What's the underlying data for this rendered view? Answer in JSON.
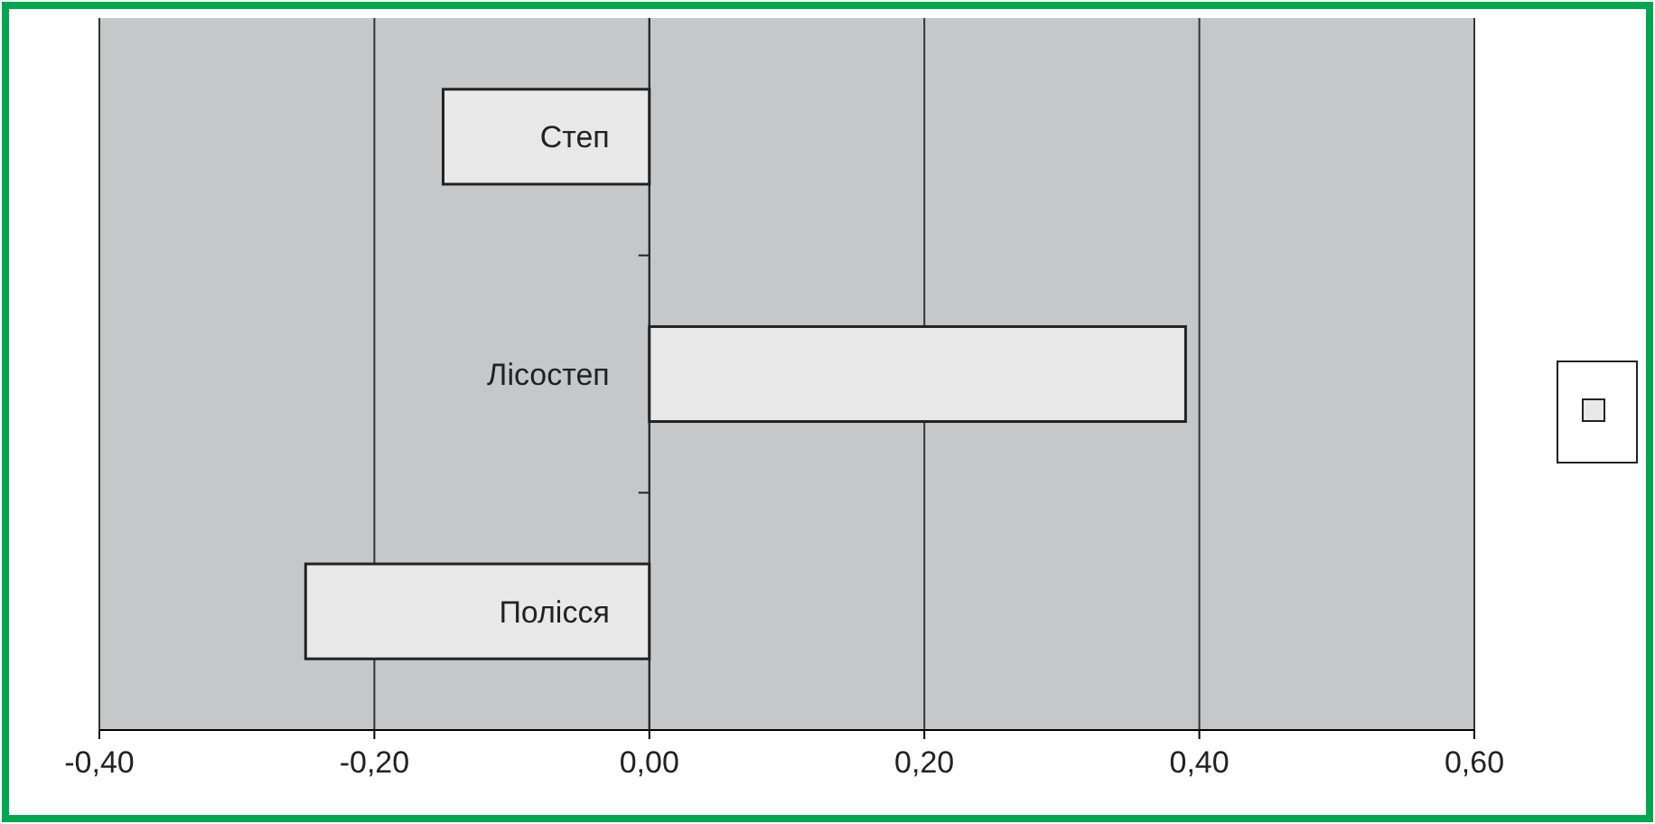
{
  "chart_data": {
    "type": "bar",
    "orientation": "horizontal",
    "categories": [
      "Степ",
      "Лісостеп",
      "Полісся"
    ],
    "series": [
      {
        "color": "#e8e8e8",
        "values": [
          -0.15,
          0.39,
          -0.25
        ]
      }
    ],
    "xlim": [
      -0.4,
      0.6
    ],
    "xticks": [
      {
        "value": -0.4,
        "label": "-0,40"
      },
      {
        "value": -0.2,
        "label": "-0,20"
      },
      {
        "value": 0,
        "label": "0,00"
      },
      {
        "value": 0.2,
        "label": "0,20"
      },
      {
        "value": 0.4,
        "label": "0,40"
      },
      {
        "value": 0.6,
        "label": "0,60"
      }
    ],
    "grid": "x"
  }
}
